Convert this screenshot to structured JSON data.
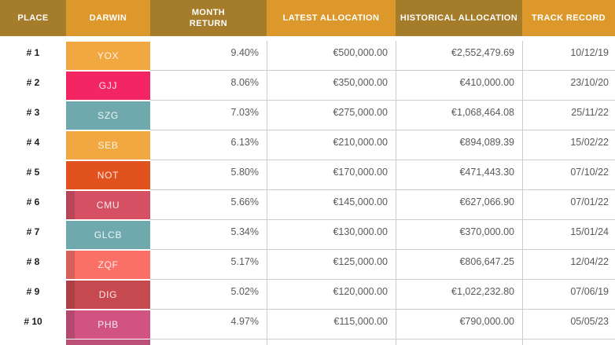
{
  "colors": {
    "header_dark": "#A57C29",
    "header_light": "#DC982B",
    "border": "#cccccc",
    "text_dark": "#1d1d1d",
    "text_gray": "#5a5a5a",
    "glow_pink": "#FFC9E9",
    "glow_cyan": "#C6EFEA",
    "partial_badge": "#BB5077"
  },
  "table": {
    "columns": [
      {
        "key": "place",
        "label": "PLACE"
      },
      {
        "key": "darwin",
        "label": "DARWIN"
      },
      {
        "key": "month-return",
        "label": "MONTH\nRETURN"
      },
      {
        "key": "latest-allocation",
        "label": "LATEST ALLOCATION"
      },
      {
        "key": "historical-allocation",
        "label": "HISTORICAL ALLOCATION"
      },
      {
        "key": "track-record",
        "label": "TRACK RECORD"
      }
    ],
    "rows": [
      {
        "place": "# 1",
        "darwin": "YOX",
        "badge_color": "#F1A840",
        "strip": false,
        "glow": "none",
        "month_return": "9.40%",
        "latest_allocation": "€500,000.00",
        "historical_allocation": "€2,552,479.69",
        "track_record": "10/12/19"
      },
      {
        "place": "# 2",
        "darwin": "GJJ",
        "badge_color": "#F32663",
        "strip": false,
        "glow": "none",
        "month_return": "8.06%",
        "latest_allocation": "€350,000.00",
        "historical_allocation": "€410,000.00",
        "track_record": "23/10/20"
      },
      {
        "place": "# 3",
        "darwin": "SZG",
        "badge_color": "#6FA9AD",
        "strip": false,
        "glow": "none",
        "month_return": "7.03%",
        "latest_allocation": "€275,000.00",
        "historical_allocation": "€1,068,464.08",
        "track_record": "25/11/22"
      },
      {
        "place": "# 4",
        "darwin": "SEB",
        "badge_color": "#F1A840",
        "strip": false,
        "glow": "none",
        "month_return": "6.13%",
        "latest_allocation": "€210,000.00",
        "historical_allocation": "€894,089.39",
        "track_record": "15/02/22"
      },
      {
        "place": "# 5",
        "darwin": "NOT",
        "badge_color": "#E2521E",
        "strip": false,
        "glow": "none",
        "month_return": "5.80%",
        "latest_allocation": "€170,000.00",
        "historical_allocation": "€471,443.30",
        "track_record": "07/10/22"
      },
      {
        "place": "# 6",
        "darwin": "CMU",
        "badge_color": "#D65064",
        "strip": true,
        "glow": "pink",
        "month_return": "5.66%",
        "latest_allocation": "€145,000.00",
        "historical_allocation": "€627,066.90",
        "track_record": "07/01/22"
      },
      {
        "place": "# 7",
        "darwin": "GLCB",
        "badge_color": "#6FA9AD",
        "strip": false,
        "glow": "cyan",
        "month_return": "5.34%",
        "latest_allocation": "€130,000.00",
        "historical_allocation": "€370,000.00",
        "track_record": "15/01/24"
      },
      {
        "place": "# 8",
        "darwin": "ZQF",
        "badge_color": "#FA6F66",
        "strip": true,
        "glow": "pink",
        "month_return": "5.17%",
        "latest_allocation": "€125,000.00",
        "historical_allocation": "€806,647.25",
        "track_record": "12/04/22"
      },
      {
        "place": "# 9",
        "darwin": "DIG",
        "badge_color": "#C5494F",
        "strip": true,
        "glow": "pink",
        "month_return": "5.02%",
        "latest_allocation": "€120,000.00",
        "historical_allocation": "€1,022,232.80",
        "track_record": "07/06/19"
      },
      {
        "place": "# 10",
        "darwin": "PHB",
        "badge_color": "#D05381",
        "strip": true,
        "glow": "pink",
        "month_return": "4.97%",
        "latest_allocation": "€115,000.00",
        "historical_allocation": "€790,000.00",
        "track_record": "05/05/23"
      }
    ]
  }
}
